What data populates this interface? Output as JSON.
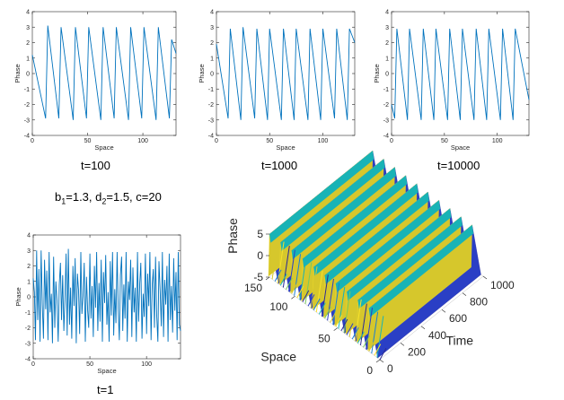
{
  "params": {
    "b_sym": "b",
    "b_sub": "1",
    "b_val": "=1.3, ",
    "d_sym": "d",
    "d_sub": "2",
    "d_val": "=1.5, ",
    "c_text": "c=20"
  },
  "chart_data": [
    {
      "type": "line",
      "id": "t100",
      "caption": "t=100",
      "xlabel": "Space",
      "ylabel": "Phase",
      "xlim": [
        0,
        130
      ],
      "ylim": [
        -4,
        4
      ],
      "xticks": [
        0,
        50,
        100
      ],
      "yticks": [
        -4,
        -3,
        -2,
        -1,
        0,
        1,
        2,
        3,
        4
      ],
      "color": "#0072BD",
      "x": [
        0,
        12,
        14,
        24,
        26,
        37,
        39,
        49,
        51,
        62,
        64,
        74,
        76,
        87,
        89,
        99,
        101,
        112,
        114,
        124,
        126,
        130
      ],
      "y": [
        1.2,
        -2.9,
        3.1,
        -2.9,
        3.0,
        -3.0,
        3.0,
        -2.9,
        3.0,
        -3.0,
        3.0,
        -2.9,
        3.0,
        -3.0,
        3.0,
        -2.9,
        3.0,
        -3.0,
        3.0,
        -2.9,
        2.2,
        1.3
      ]
    },
    {
      "type": "line",
      "id": "t1000",
      "caption": "t=1000",
      "xlabel": "Space",
      "ylabel": "Phase",
      "xlim": [
        0,
        130
      ],
      "ylim": [
        -4,
        4
      ],
      "xticks": [
        0,
        50,
        100
      ],
      "yticks": [
        -4,
        -3,
        -2,
        -1,
        0,
        1,
        2,
        3,
        4
      ],
      "color": "#0072BD",
      "x": [
        0,
        11,
        13,
        23,
        25,
        36,
        38,
        48,
        50,
        61,
        63,
        73,
        75,
        86,
        88,
        98,
        100,
        111,
        113,
        123,
        125,
        130
      ],
      "y": [
        1.9,
        -2.9,
        2.9,
        -3.0,
        3.0,
        -2.9,
        2.9,
        -3.0,
        2.9,
        -3.0,
        2.9,
        -3.0,
        2.9,
        -3.0,
        2.9,
        -3.0,
        2.9,
        -2.9,
        2.9,
        -3.0,
        2.9,
        2.0
      ]
    },
    {
      "type": "line",
      "id": "t10000",
      "caption": "t=10000",
      "xlabel": "Space",
      "ylabel": "Phase",
      "xlim": [
        0,
        130
      ],
      "ylim": [
        -4,
        4
      ],
      "xticks": [
        0,
        50,
        100
      ],
      "yticks": [
        -4,
        -3,
        -2,
        -1,
        0,
        1,
        2,
        3,
        4
      ],
      "color": "#0072BD",
      "x": [
        0,
        3,
        5,
        15,
        17,
        28,
        30,
        40,
        42,
        53,
        55,
        65,
        67,
        78,
        80,
        90,
        92,
        103,
        105,
        115,
        117,
        130
      ],
      "y": [
        -2.0,
        -2.9,
        2.9,
        -3.0,
        2.9,
        -3.0,
        2.9,
        -3.0,
        2.9,
        -3.0,
        2.9,
        -3.0,
        2.9,
        -3.0,
        2.9,
        -3.0,
        2.9,
        -3.0,
        2.9,
        -3.0,
        2.9,
        -1.7
      ]
    },
    {
      "type": "line",
      "id": "t1",
      "caption": "t=1",
      "xlabel": "Space",
      "ylabel": "Phase",
      "xlim": [
        0,
        130
      ],
      "ylim": [
        -4,
        4
      ],
      "xticks": [
        0,
        50,
        100
      ],
      "yticks": [
        -4,
        -3,
        -2,
        -1,
        0,
        1,
        2,
        3,
        4
      ],
      "color": "#0072BD",
      "x": [
        0,
        1,
        2,
        3,
        4,
        5,
        6,
        7,
        8,
        9,
        10,
        11,
        12,
        13,
        14,
        15,
        16,
        17,
        18,
        19,
        20,
        21,
        22,
        23,
        24,
        25,
        26,
        27,
        28,
        29,
        30,
        31,
        32,
        33,
        34,
        35,
        36,
        37,
        38,
        39,
        40,
        41,
        42,
        43,
        44,
        45,
        46,
        47,
        48,
        49,
        50,
        51,
        52,
        53,
        54,
        55,
        56,
        57,
        58,
        59,
        60,
        61,
        62,
        63,
        64,
        65,
        66,
        67,
        68,
        69,
        70,
        71,
        72,
        73,
        74,
        75,
        76,
        77,
        78,
        79,
        80,
        81,
        82,
        83,
        84,
        85,
        86,
        87,
        88,
        89,
        90,
        91,
        92,
        93,
        94,
        95,
        96,
        97,
        98,
        99,
        100,
        101,
        102,
        103,
        104,
        105,
        106,
        107,
        108,
        109,
        110,
        111,
        112,
        113,
        114,
        115,
        116,
        117,
        118,
        119,
        120,
        121,
        122,
        123,
        124,
        125,
        126,
        127,
        128,
        129,
        130
      ],
      "y": [
        1.2,
        0.3,
        -2.8,
        3.0,
        -1.5,
        1.8,
        -2.9,
        3.0,
        -0.5,
        -2.7,
        2.4,
        -0.8,
        1.7,
        -2.8,
        2.9,
        -1.0,
        0.2,
        -3.0,
        2.6,
        -2.0,
        1.0,
        -0.3,
        -2.9,
        0.8,
        2.2,
        -1.5,
        1.4,
        -2.2,
        -0.2,
        2.8,
        -2.5,
        3.1,
        -1.8,
        0.6,
        -2.7,
        2.0,
        -0.6,
        2.5,
        -3.0,
        1.5,
        0.4,
        -2.4,
        2.9,
        -1.1,
        0.1,
        2.2,
        -2.9,
        1.3,
        -0.9,
        -2.0,
        2.8,
        -1.4,
        0.7,
        -2.6,
        2.0,
        -0.7,
        2.9,
        -2.2,
        0.9,
        -1.6,
        2.4,
        -2.9,
        1.6,
        -0.4,
        2.7,
        -1.8,
        0.3,
        -2.9,
        2.3,
        -1.2,
        2.9,
        -2.5,
        0.5,
        -1.7,
        2.9,
        -0.8,
        -2.8,
        1.4,
        2.6,
        -2.2,
        0.8,
        -1.4,
        2.9,
        -2.9,
        1.0,
        -0.2,
        2.4,
        -2.6,
        1.9,
        -1.0,
        0.6,
        -2.9,
        2.9,
        -1.6,
        0.9,
        2.2,
        -2.7,
        0.2,
        -1.3,
        2.8,
        -2.4,
        1.5,
        -0.6,
        2.9,
        -2.8,
        0.8,
        1.8,
        -2.0,
        2.6,
        -1.2,
        -2.9,
        2.3,
        0.4,
        -1.9,
        2.9,
        -2.6,
        1.1,
        -0.5,
        2.0,
        -2.9,
        2.8,
        -1.5,
        0.7,
        -2.3,
        2.5,
        -0.9,
        1.6,
        -2.8,
        2.9,
        -1.8,
        -2.2
      ]
    },
    {
      "type": "surface",
      "id": "surf3d",
      "xlabel": "Time",
      "ylabel": "Space",
      "zlabel": "Phase",
      "time_ticks": [
        0,
        200,
        400,
        600,
        800,
        1000
      ],
      "space_ticks": [
        0,
        50,
        100,
        150
      ],
      "phase_ticks": [
        -5,
        0,
        5
      ],
      "time_range": [
        0,
        1000
      ],
      "space_range": [
        0,
        130
      ],
      "phase_range": [
        -5,
        5
      ],
      "stripe_count": 10,
      "colormap": [
        "#2c2a96",
        "#2a3fc5",
        "#1b7fd4",
        "#18b3b6",
        "#77c85f",
        "#d6c72c",
        "#f7e22b"
      ]
    }
  ]
}
